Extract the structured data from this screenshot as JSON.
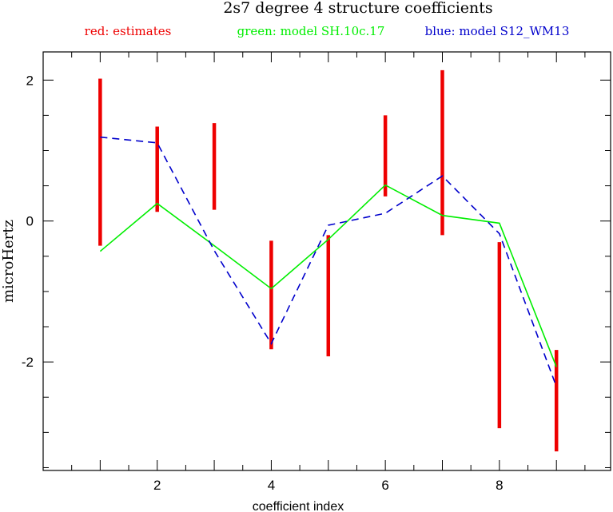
{
  "chart_data": {
    "type": "line",
    "title": "2s7 degree 4 structure coefficients",
    "xlabel": "coefficient index",
    "ylabel": "microHertz",
    "xlim": [
      0.0,
      9.95
    ],
    "ylim": [
      -3.54,
      2.4
    ],
    "x_ticks": [
      2,
      4,
      6,
      8
    ],
    "x_minor_step": 0.5,
    "y_ticks": [
      -2,
      0,
      2
    ],
    "y_minor_step": 0.5,
    "legend": [
      {
        "label": "red: estimates",
        "color": "#ee0000"
      },
      {
        "label": "green: model SH.10c.17",
        "color": "#00ee00"
      },
      {
        "label": "blue: model S12_WM13",
        "color": "#0000cc"
      }
    ],
    "series": [
      {
        "name": "red: estimates",
        "kind": "error_bars",
        "color": "#ee0000",
        "x": [
          1,
          2,
          3,
          4,
          5,
          6,
          7,
          8,
          9
        ],
        "low": [
          -0.35,
          0.13,
          0.16,
          -1.82,
          -1.92,
          0.35,
          -0.2,
          -2.94,
          -3.27
        ],
        "high": [
          2.02,
          1.34,
          1.39,
          -0.28,
          -0.2,
          1.5,
          2.14,
          -0.3,
          -1.83
        ]
      },
      {
        "name": "green: model SH.10c.17",
        "kind": "line",
        "color": "#00ee00",
        "x": [
          1,
          2,
          3,
          4,
          5,
          6,
          7,
          8,
          9
        ],
        "y": [
          -0.43,
          0.25,
          -0.35,
          -0.96,
          -0.26,
          0.51,
          0.08,
          -0.03,
          -2.07
        ]
      },
      {
        "name": "blue: model S12_WM13",
        "kind": "dashed_line",
        "color": "#0000cc",
        "x": [
          1,
          2,
          3,
          4,
          5,
          6,
          7,
          8,
          9
        ],
        "y": [
          1.19,
          1.11,
          -0.42,
          -1.74,
          -0.06,
          0.11,
          0.64,
          -0.18,
          -2.35
        ]
      }
    ],
    "grid": false
  }
}
